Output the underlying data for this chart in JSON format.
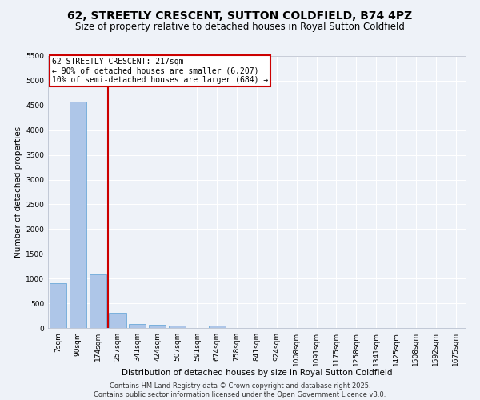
{
  "title": "62, STREETLY CRESCENT, SUTTON COLDFIELD, B74 4PZ",
  "subtitle": "Size of property relative to detached houses in Royal Sutton Coldfield",
  "xlabel": "Distribution of detached houses by size in Royal Sutton Coldfield",
  "ylabel": "Number of detached properties",
  "categories": [
    "7sqm",
    "90sqm",
    "174sqm",
    "257sqm",
    "341sqm",
    "424sqm",
    "507sqm",
    "591sqm",
    "674sqm",
    "758sqm",
    "841sqm",
    "924sqm",
    "1008sqm",
    "1091sqm",
    "1175sqm",
    "1258sqm",
    "1341sqm",
    "1425sqm",
    "1508sqm",
    "1592sqm",
    "1675sqm"
  ],
  "values": [
    900,
    4580,
    1090,
    305,
    75,
    60,
    45,
    0,
    50,
    0,
    0,
    0,
    0,
    0,
    0,
    0,
    0,
    0,
    0,
    0,
    0
  ],
  "bar_color": "#aec6e8",
  "bar_edge_color": "#5a9fd4",
  "vline_x_idx": 2,
  "vline_color": "#cc0000",
  "annotation_text": "62 STREETLY CRESCENT: 217sqm\n← 90% of detached houses are smaller (6,207)\n10% of semi-detached houses are larger (684) →",
  "annotation_box_color": "#cc0000",
  "ylim": [
    0,
    5500
  ],
  "yticks": [
    0,
    500,
    1000,
    1500,
    2000,
    2500,
    3000,
    3500,
    4000,
    4500,
    5000,
    5500
  ],
  "background_color": "#eef2f8",
  "grid_color": "#ffffff",
  "footer": "Contains HM Land Registry data © Crown copyright and database right 2025.\nContains public sector information licensed under the Open Government Licence v3.0.",
  "title_fontsize": 10,
  "subtitle_fontsize": 8.5,
  "xlabel_fontsize": 7.5,
  "ylabel_fontsize": 7.5,
  "tick_fontsize": 6.5,
  "annotation_fontsize": 7,
  "footer_fontsize": 6
}
